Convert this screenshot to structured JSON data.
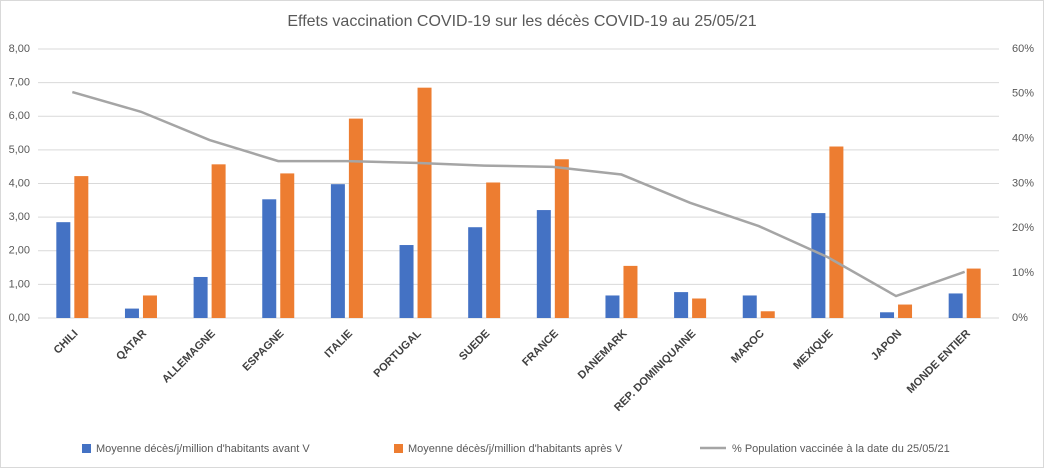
{
  "chart_data": {
    "type": "bar-line",
    "title": "Effets vaccination COVID-19 sur les décès COVID-19 au 25/05/21",
    "categories": [
      "CHILI",
      "QATAR",
      "ALLEMAGNE",
      "ESPAGNE",
      "ITALIE",
      "PORTUGAL",
      "SUEDE",
      "FRANCE",
      "DANEMARK",
      "REP. DOMINIQUAINE",
      "MAROC",
      "MEXIQUE",
      "JAPON",
      "MONDE ENTIER"
    ],
    "series": [
      {
        "name": "Moyenne décès/j/million d'habitants avant V",
        "color": "#4472c4",
        "type": "bar",
        "values": [
          2.85,
          0.28,
          1.22,
          3.53,
          3.98,
          2.17,
          2.7,
          3.21,
          0.67,
          0.77,
          0.67,
          3.12,
          0.17,
          0.73
        ]
      },
      {
        "name": "Moyenne décès/j/million d'habitants après V",
        "color": "#ed7d31",
        "type": "bar",
        "values": [
          4.22,
          0.67,
          4.57,
          4.3,
          5.93,
          6.85,
          4.03,
          4.72,
          1.55,
          0.58,
          0.2,
          5.1,
          0.4,
          1.47
        ]
      },
      {
        "name": "% Population vaccinée à la date du 25/05/21",
        "color": "#a5a5a5",
        "type": "line",
        "axis": "y2",
        "values": [
          50.4,
          46,
          39.7,
          35,
          35,
          34.6,
          34,
          33.7,
          32,
          25.7,
          20.5,
          13.6,
          4.9,
          10.3
        ]
      }
    ],
    "ylim": [
      0,
      8
    ],
    "yticks": [
      {
        "value": 0,
        "label": "0,00"
      },
      {
        "value": 1,
        "label": "1,00"
      },
      {
        "value": 2,
        "label": "2,00"
      },
      {
        "value": 3,
        "label": "3,00"
      },
      {
        "value": 4,
        "label": "4,00"
      },
      {
        "value": 5,
        "label": "5,00"
      },
      {
        "value": 6,
        "label": "6,00"
      },
      {
        "value": 7,
        "label": "7,00"
      },
      {
        "value": 8,
        "label": "8,00"
      }
    ],
    "y2lim": [
      0,
      60
    ],
    "y2ticks": [
      {
        "value": 0,
        "label": "0%"
      },
      {
        "value": 10,
        "label": "10%"
      },
      {
        "value": 20,
        "label": "20%"
      },
      {
        "value": 30,
        "label": "30%"
      },
      {
        "value": 40,
        "label": "40%"
      },
      {
        "value": 50,
        "label": "50%"
      },
      {
        "value": 60,
        "label": "60%"
      }
    ],
    "grid": true
  }
}
